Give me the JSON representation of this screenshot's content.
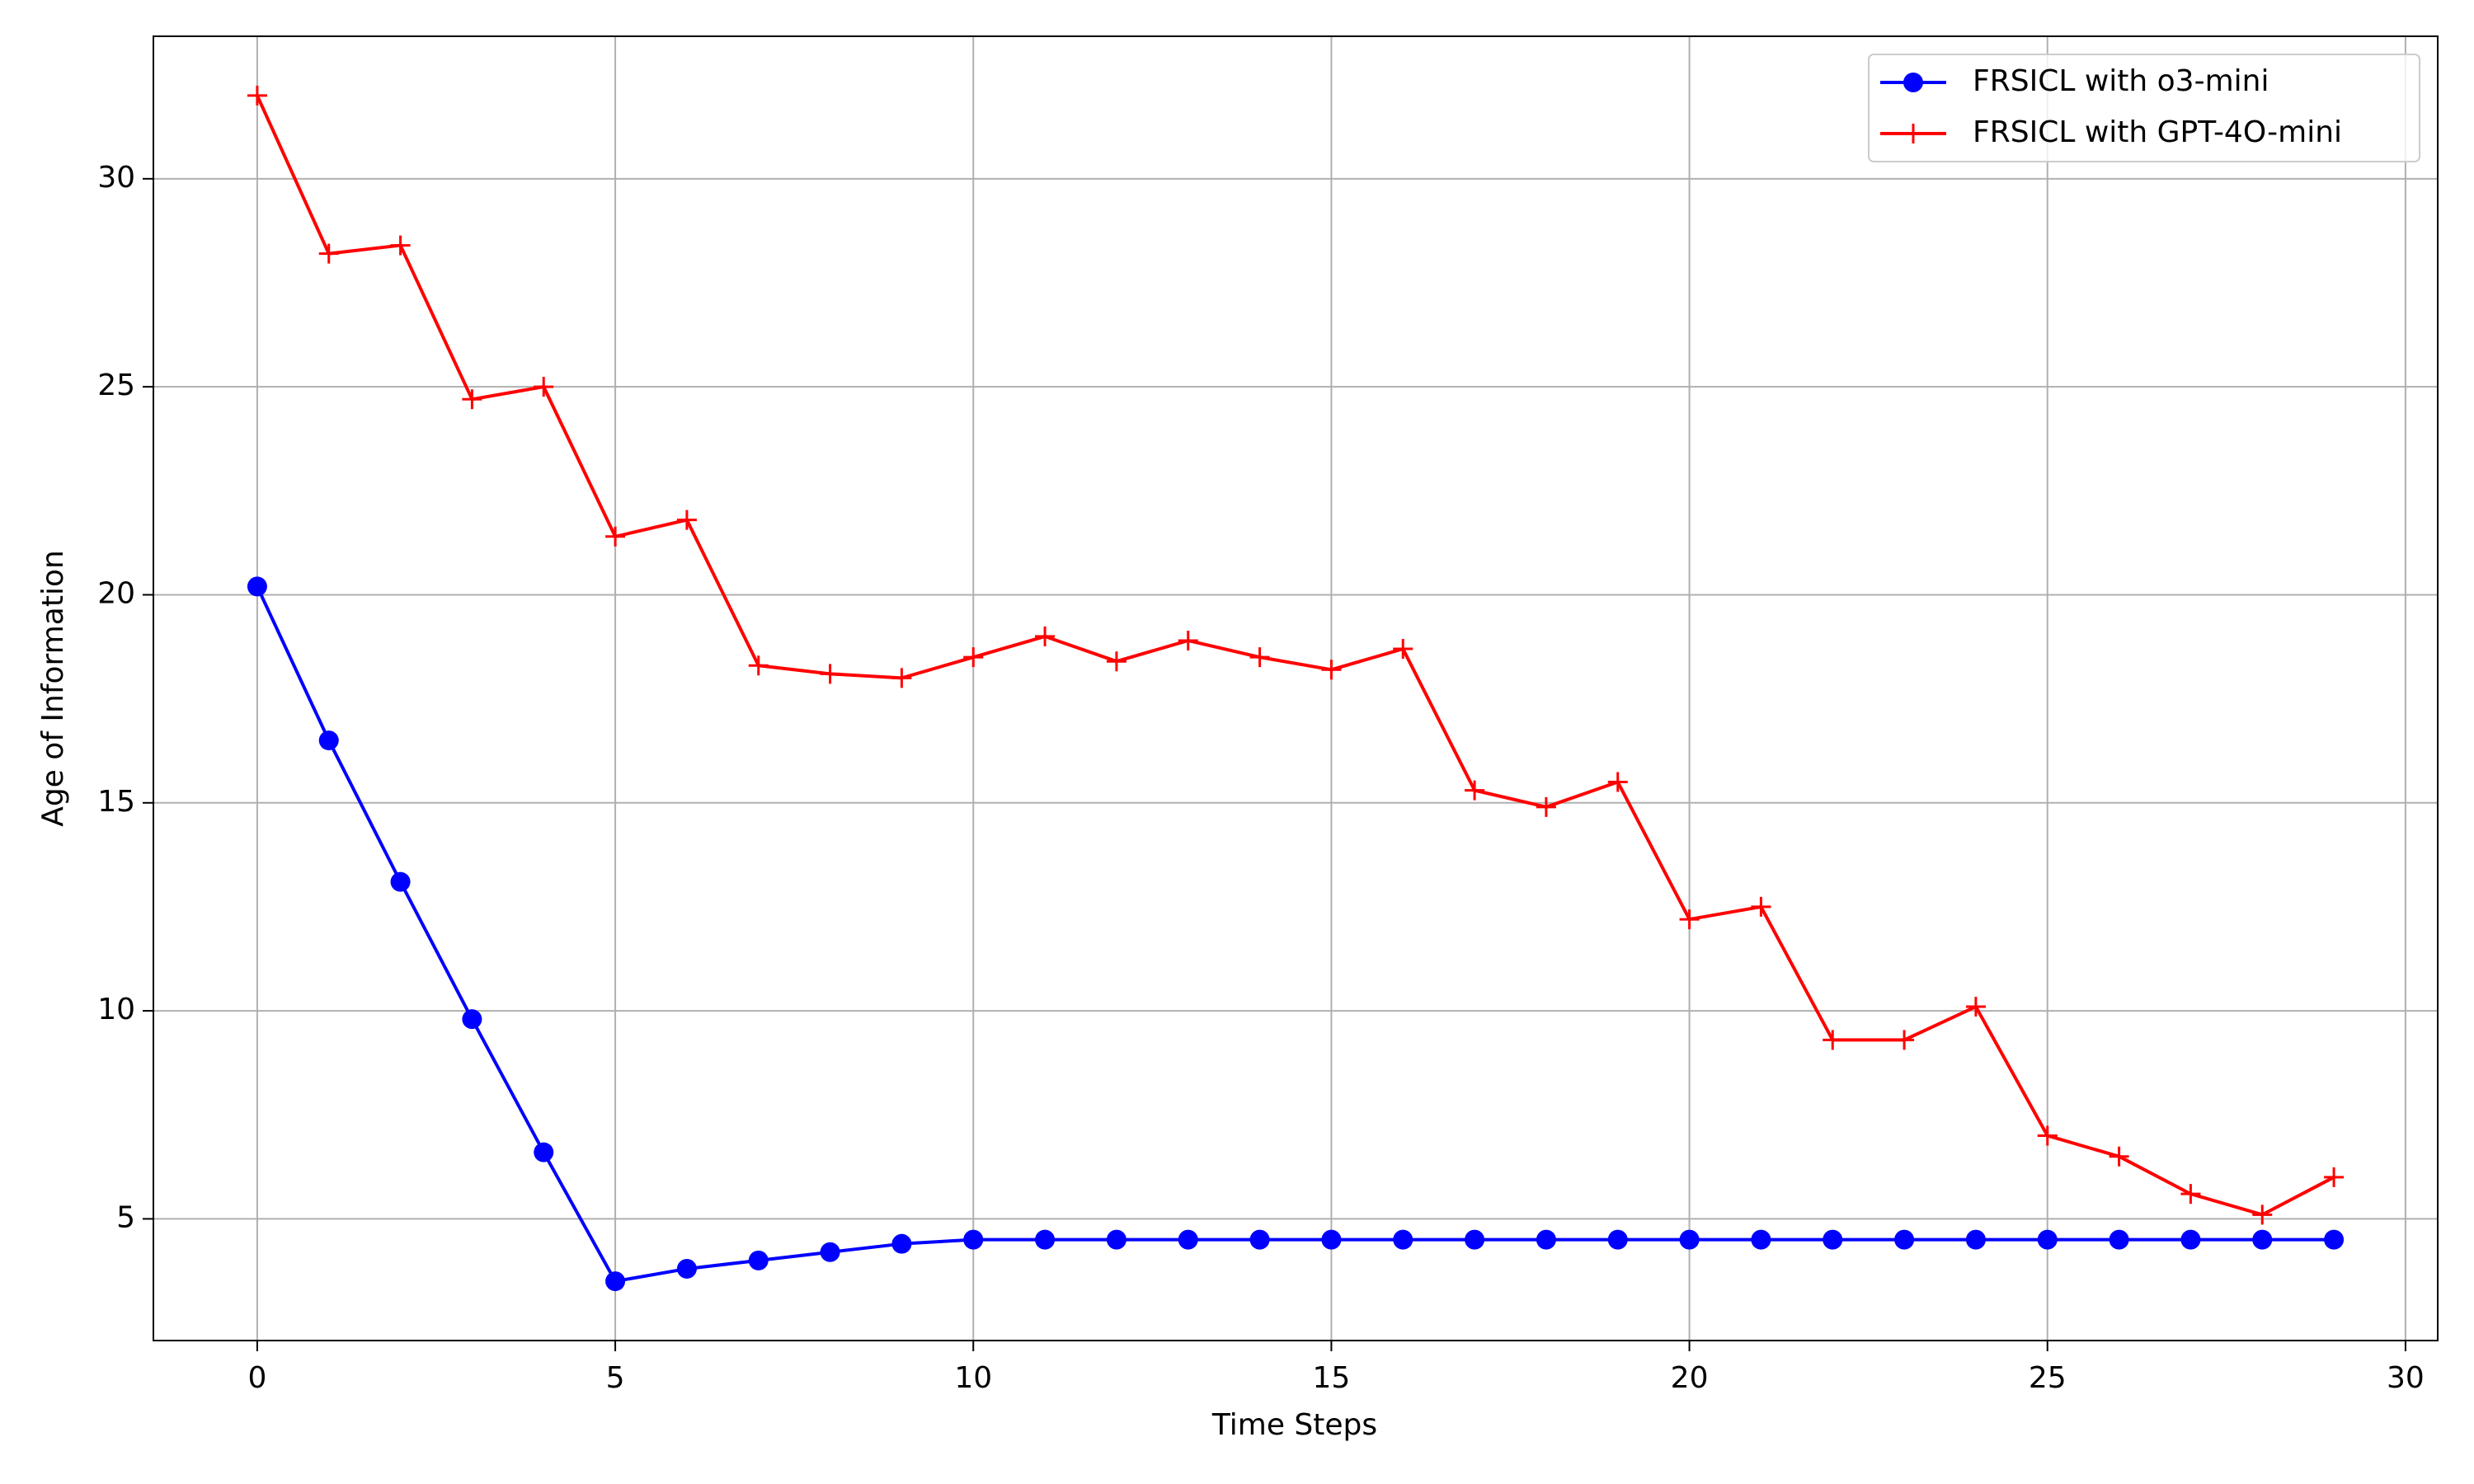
{
  "chart_data": {
    "type": "line",
    "xlabel": "Time Steps",
    "ylabel": "Age of Information",
    "x": [
      0,
      1,
      2,
      3,
      4,
      5,
      6,
      7,
      8,
      9,
      10,
      11,
      12,
      13,
      14,
      15,
      16,
      17,
      18,
      19,
      20,
      21,
      22,
      23,
      24,
      25,
      26,
      27,
      28,
      29
    ],
    "series": [
      {
        "name": "FRSICL with o3-mini",
        "color": "#0000ff",
        "marker": "circle",
        "values": [
          20.2,
          16.5,
          13.1,
          9.8,
          6.6,
          3.5,
          3.8,
          4.0,
          4.2,
          4.4,
          4.5,
          4.5,
          4.5,
          4.5,
          4.5,
          4.5,
          4.5,
          4.5,
          4.5,
          4.5,
          4.5,
          4.5,
          4.5,
          4.5,
          4.5,
          4.5,
          4.5,
          4.5,
          4.5,
          4.5
        ]
      },
      {
        "name": "FRSICL with GPT-4O-mini",
        "color": "#ff0000",
        "marker": "plus",
        "values": [
          32,
          28.2,
          28.4,
          24.7,
          25.0,
          21.4,
          21.8,
          18.3,
          18.1,
          18.0,
          18.5,
          19.0,
          18.4,
          18.9,
          18.5,
          18.2,
          18.7,
          15.3,
          14.9,
          15.5,
          12.2,
          12.5,
          9.3,
          9.3,
          10.1,
          7.0,
          6.5,
          5.6,
          5.1,
          6.0
        ]
      }
    ],
    "xlim": [
      -1.45,
      30.45
    ],
    "ylim": [
      2.075,
      33.425
    ],
    "xticks": [
      0,
      5,
      10,
      15,
      20,
      25,
      30
    ],
    "yticks": [
      5,
      10,
      15,
      20,
      25,
      30
    ],
    "grid": true,
    "legend": "upper right"
  }
}
